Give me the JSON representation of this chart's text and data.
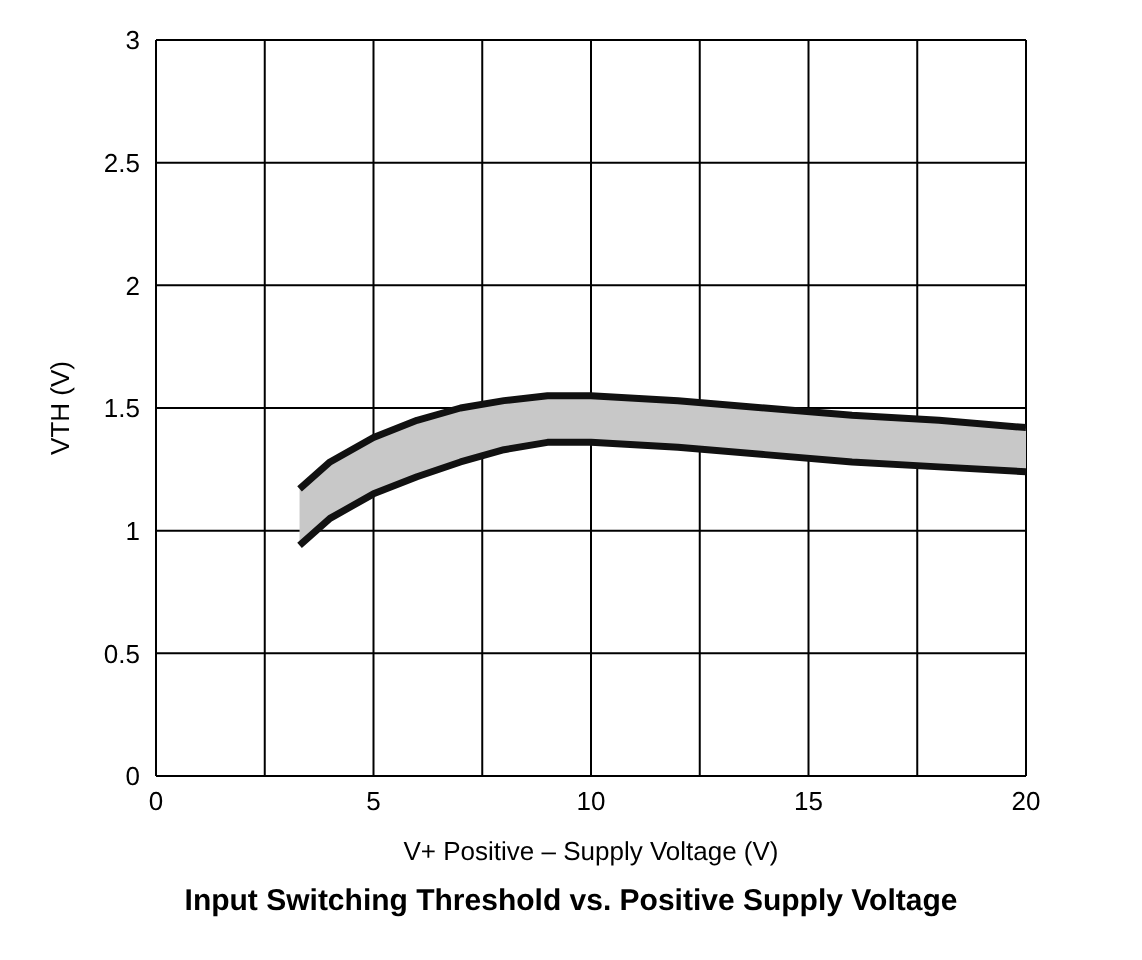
{
  "chart_data": {
    "type": "line",
    "title": "Input Switching Threshold vs. Positive Supply Voltage",
    "xlabel": "V+ Positive – Supply Voltage (V)",
    "ylabel": "VTH (V)",
    "x": [
      3.3,
      4,
      5,
      6,
      7,
      8,
      9,
      10,
      12,
      14,
      16,
      18,
      20
    ],
    "series": [
      {
        "type": "line",
        "color": "#111111",
        "values": [
          1.17,
          1.28,
          1.38,
          1.45,
          1.5,
          1.53,
          1.55,
          1.55,
          1.53,
          1.5,
          1.47,
          1.45,
          1.42
        ],
        "lower": [
          0.94,
          1.05,
          1.15,
          1.22,
          1.28,
          1.33,
          1.36,
          1.36,
          1.34,
          1.31,
          1.28,
          1.26,
          1.24
        ],
        "upper": [
          1.17,
          1.28,
          1.38,
          1.45,
          1.5,
          1.53,
          1.55,
          1.55,
          1.53,
          1.5,
          1.47,
          1.45,
          1.42
        ]
      },
      {
        "color": "#111111",
        "values": [
          0.94,
          1.05,
          1.15,
          1.22,
          1.28,
          1.33,
          1.36,
          1.36,
          1.34,
          1.31,
          1.28,
          1.26,
          1.24
        ]
      }
    ],
    "xlim": [
      0,
      20
    ],
    "xticks": [
      0,
      {
        "value": 2.5,
        "label": null
      },
      5,
      {
        "value": 7.5,
        "label": null
      },
      10,
      {
        "value": 12.5,
        "label": null
      },
      15,
      {
        "value": 17.5,
        "label": null
      },
      20
    ],
    "ylim": [
      0,
      3
    ],
    "yticks": [
      0,
      0.5,
      1,
      1.5,
      2,
      2.5,
      3
    ],
    "grid": true,
    "marker": "none",
    "line_style": "solid"
  }
}
